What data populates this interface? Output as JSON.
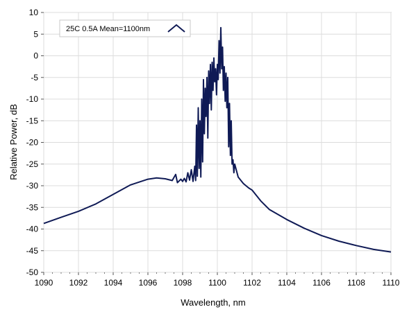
{
  "chart_data": {
    "type": "line",
    "title": "",
    "xlabel": "Wavelength, nm",
    "ylabel": "Relative Power, dB",
    "xlim": [
      1090,
      1110
    ],
    "ylim": [
      -50,
      10
    ],
    "x_ticks": [
      1090,
      1092,
      1094,
      1096,
      1098,
      1100,
      1102,
      1104,
      1106,
      1108,
      1110
    ],
    "y_ticks": [
      10,
      5,
      0,
      -5,
      -10,
      -15,
      -20,
      -25,
      -30,
      -35,
      -40,
      -45,
      -50
    ],
    "grid": true,
    "legend_position": "top-left",
    "series": [
      {
        "name": "25C 0.5A Mean=1100nm",
        "color": "#0f1a55",
        "points": [
          [
            1090.0,
            -38.7
          ],
          [
            1091.0,
            -37.3
          ],
          [
            1092.0,
            -35.9
          ],
          [
            1093.0,
            -34.2
          ],
          [
            1094.0,
            -32.0
          ],
          [
            1095.0,
            -29.8
          ],
          [
            1096.0,
            -28.5
          ],
          [
            1096.5,
            -28.2
          ],
          [
            1097.0,
            -28.4
          ],
          [
            1097.4,
            -28.8
          ],
          [
            1097.6,
            -27.4
          ],
          [
            1097.7,
            -29.3
          ],
          [
            1097.9,
            -28.5
          ],
          [
            1098.0,
            -29.0
          ],
          [
            1098.1,
            -28.3
          ],
          [
            1098.2,
            -29.1
          ],
          [
            1098.3,
            -27.0
          ],
          [
            1098.4,
            -28.7
          ],
          [
            1098.5,
            -26.3
          ],
          [
            1098.6,
            -29.0
          ],
          [
            1098.7,
            -25.5
          ],
          [
            1098.75,
            -28.8
          ],
          [
            1098.8,
            -16.0
          ],
          [
            1098.85,
            -27.8
          ],
          [
            1098.9,
            -12.0
          ],
          [
            1098.95,
            -26.0
          ],
          [
            1099.0,
            -15.0
          ],
          [
            1099.05,
            -28.0
          ],
          [
            1099.1,
            -10.0
          ],
          [
            1099.15,
            -24.5
          ],
          [
            1099.2,
            -5.5
          ],
          [
            1099.25,
            -18.0
          ],
          [
            1099.3,
            -7.5
          ],
          [
            1099.35,
            -14.0
          ],
          [
            1099.4,
            -5.0
          ],
          [
            1099.45,
            -19.0
          ],
          [
            1099.5,
            -3.5
          ],
          [
            1099.55,
            -11.0
          ],
          [
            1099.6,
            -2.0
          ],
          [
            1099.65,
            -12.5
          ],
          [
            1099.7,
            -1.5
          ],
          [
            1099.75,
            -8.0
          ],
          [
            1099.8,
            -0.5
          ],
          [
            1099.85,
            -6.0
          ],
          [
            1099.9,
            -3.0
          ],
          [
            1099.95,
            -9.0
          ],
          [
            1100.0,
            -2.0
          ],
          [
            1100.05,
            -5.5
          ],
          [
            1100.1,
            3.5
          ],
          [
            1100.15,
            -4.0
          ],
          [
            1100.2,
            6.5
          ],
          [
            1100.25,
            -3.0
          ],
          [
            1100.3,
            2.0
          ],
          [
            1100.35,
            -8.0
          ],
          [
            1100.4,
            -2.5
          ],
          [
            1100.45,
            -10.5
          ],
          [
            1100.5,
            -4.0
          ],
          [
            1100.55,
            -12.0
          ],
          [
            1100.6,
            -5.0
          ],
          [
            1100.65,
            -21.0
          ],
          [
            1100.7,
            -11.0
          ],
          [
            1100.75,
            -23.0
          ],
          [
            1100.8,
            -15.0
          ],
          [
            1100.85,
            -25.0
          ],
          [
            1100.9,
            -24.0
          ],
          [
            1100.95,
            -27.0
          ],
          [
            1101.0,
            -25.0
          ],
          [
            1101.1,
            -26.5
          ],
          [
            1101.2,
            -28.0
          ],
          [
            1101.3,
            -28.5
          ],
          [
            1101.5,
            -29.5
          ],
          [
            1101.8,
            -30.5
          ],
          [
            1102.0,
            -31.0
          ],
          [
            1102.5,
            -33.5
          ],
          [
            1103.0,
            -35.5
          ],
          [
            1104.0,
            -37.8
          ],
          [
            1105.0,
            -39.8
          ],
          [
            1106.0,
            -41.5
          ],
          [
            1107.0,
            -42.8
          ],
          [
            1108.0,
            -43.8
          ],
          [
            1109.0,
            -44.7
          ],
          [
            1110.0,
            -45.3
          ]
        ]
      }
    ]
  }
}
